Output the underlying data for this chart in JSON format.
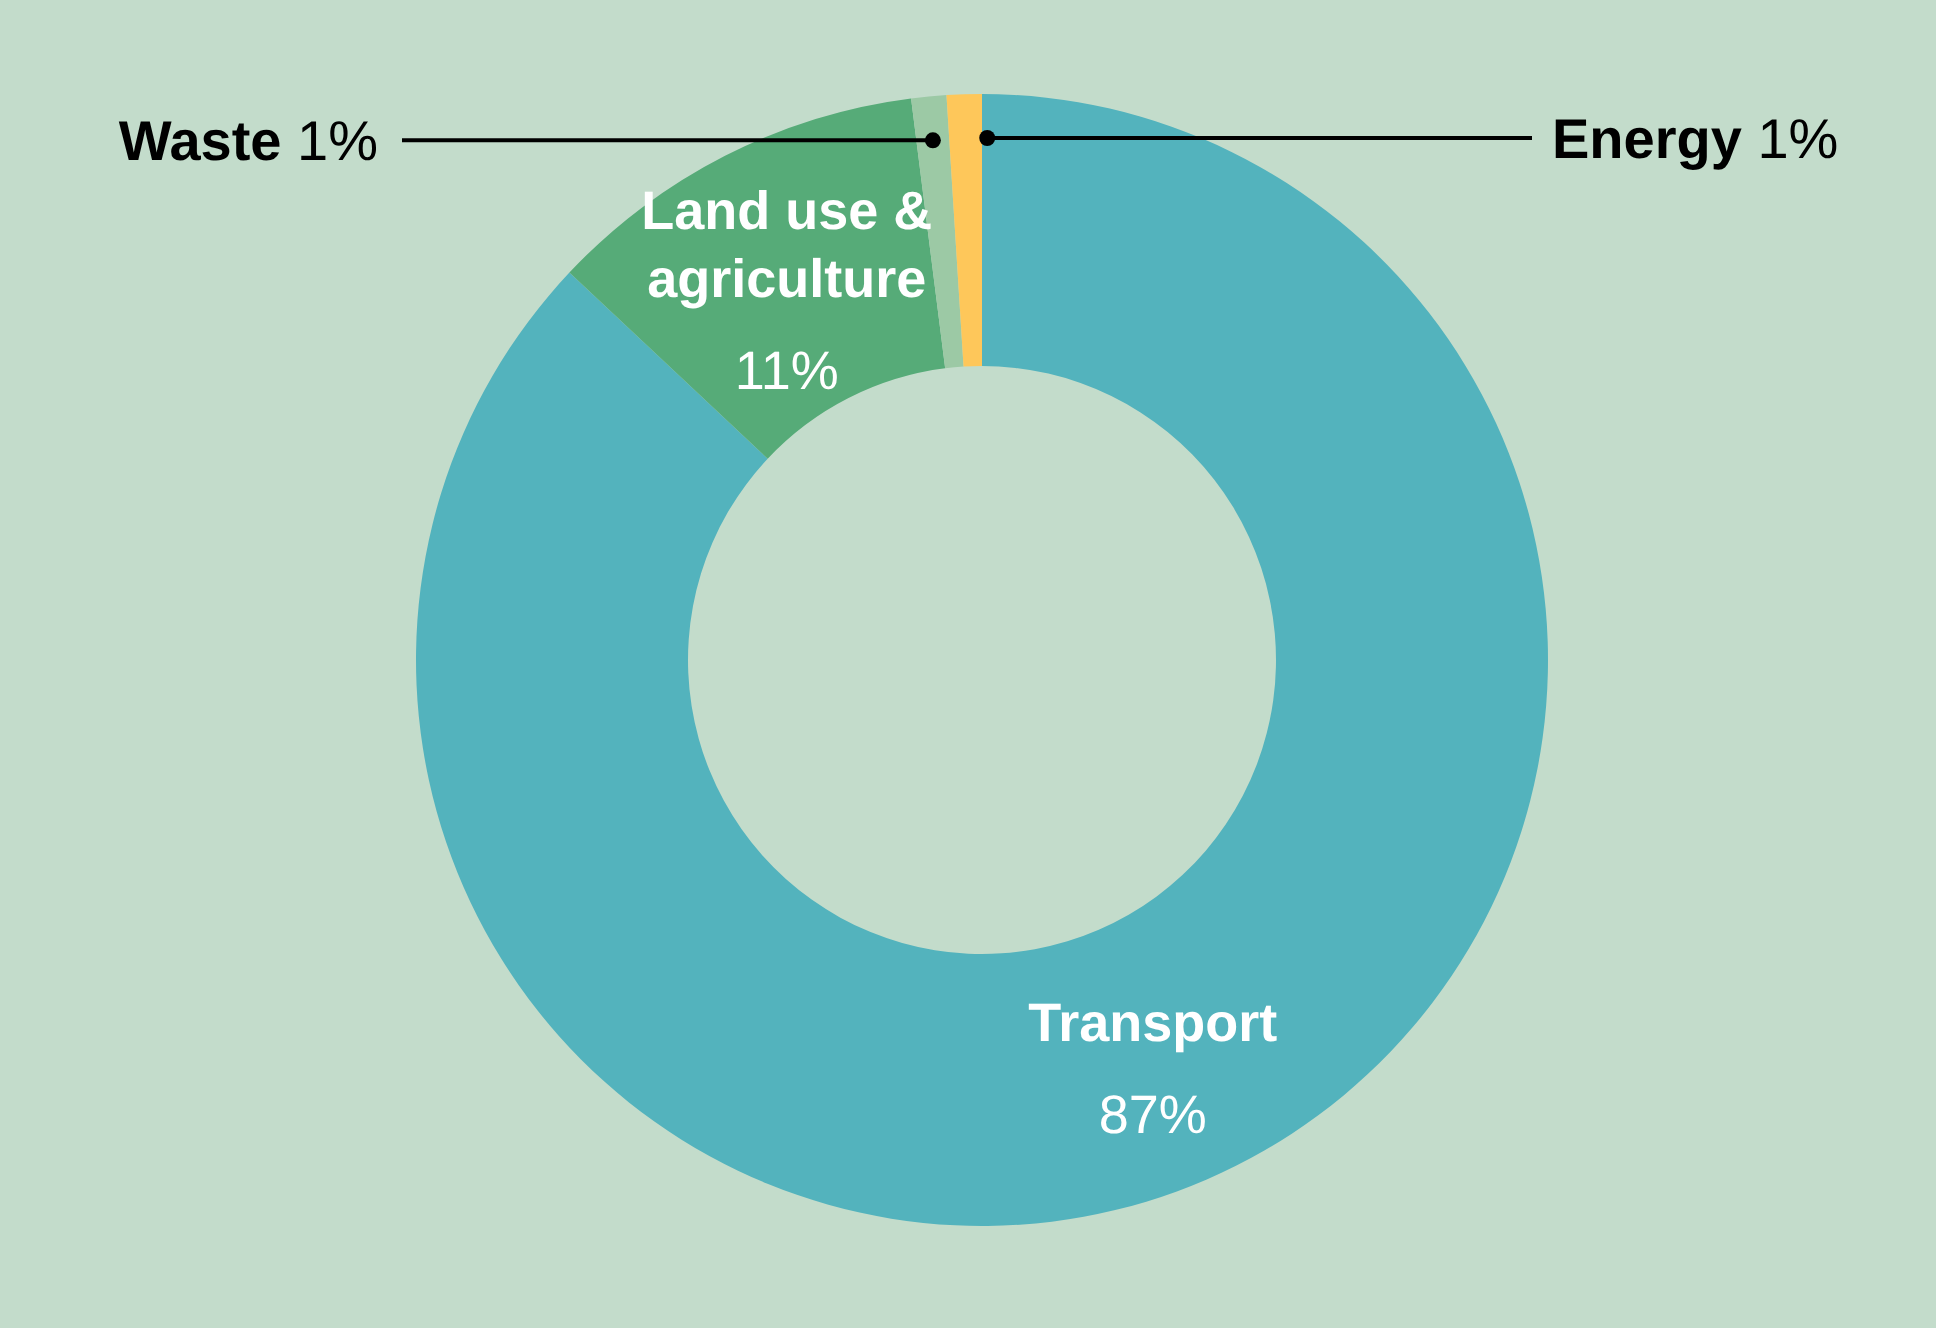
{
  "chart_data": {
    "type": "donut",
    "categories": [
      "Transport",
      "Land use & agriculture",
      "Waste",
      "Energy"
    ],
    "values": [
      87,
      11,
      1,
      1
    ],
    "colors": [
      "#53b3bd",
      "#56ab78",
      "#9cc9a5",
      "#fec75a"
    ],
    "value_labels": [
      "87%",
      "11%",
      "1%",
      "1%"
    ]
  }
}
